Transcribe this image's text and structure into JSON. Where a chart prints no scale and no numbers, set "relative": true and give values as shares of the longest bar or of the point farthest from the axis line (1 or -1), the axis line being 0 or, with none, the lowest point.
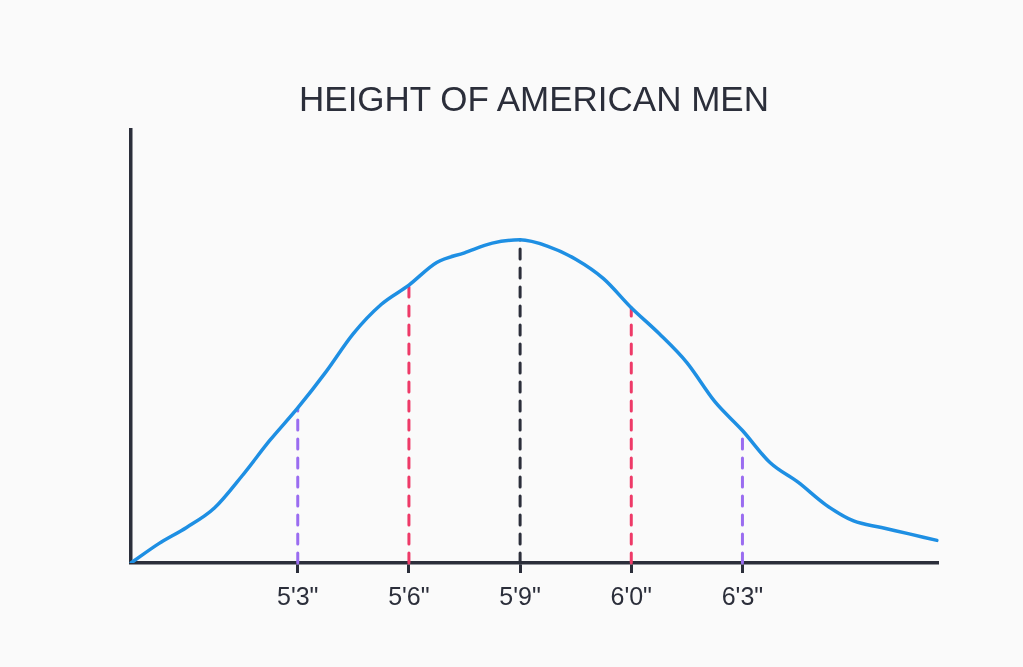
{
  "chart_data": {
    "type": "line",
    "title": "HEIGHT OF AMERICAN MEN",
    "relative": true,
    "categories": [
      null,
      null,
      null,
      null,
      null,
      null,
      "5'3\"",
      null,
      null,
      null,
      "5'6\"",
      null,
      null,
      null,
      "5'9\"",
      null,
      null,
      null,
      "6'0\"",
      null,
      null,
      null,
      "6'3\"",
      null,
      null,
      null,
      null,
      null,
      null,
      null
    ],
    "values": [
      0,
      0.06,
      0.11,
      0.17,
      0.27,
      0.38,
      0.48,
      0.59,
      0.71,
      0.8,
      0.86,
      0.93,
      0.96,
      0.99,
      1,
      0.98,
      0.94,
      0.88,
      0.79,
      0.71,
      0.62,
      0.5,
      0.41,
      0.31,
      0.25,
      0.18,
      0.13,
      0.11,
      0.09,
      0.07
    ],
    "color": "#1e8fe3",
    "marker": "none",
    "ref_lines": [
      {
        "axis": "x",
        "value": "5'3\"",
        "color": "#9a6cf0",
        "line_style": "dashed"
      },
      {
        "axis": "x",
        "value": "5'6\"",
        "color": "#ee3a68",
        "line_style": "dashed"
      },
      {
        "axis": "x",
        "value": "5'9\"",
        "color": "#2b2e3a",
        "line_style": "dashed"
      },
      {
        "axis": "x",
        "value": "6'0\"",
        "color": "#ee3a68",
        "line_style": "dashed"
      },
      {
        "axis": "x",
        "value": "6'3\"",
        "color": "#9a6cf0",
        "line_style": "dashed"
      }
    ]
  }
}
